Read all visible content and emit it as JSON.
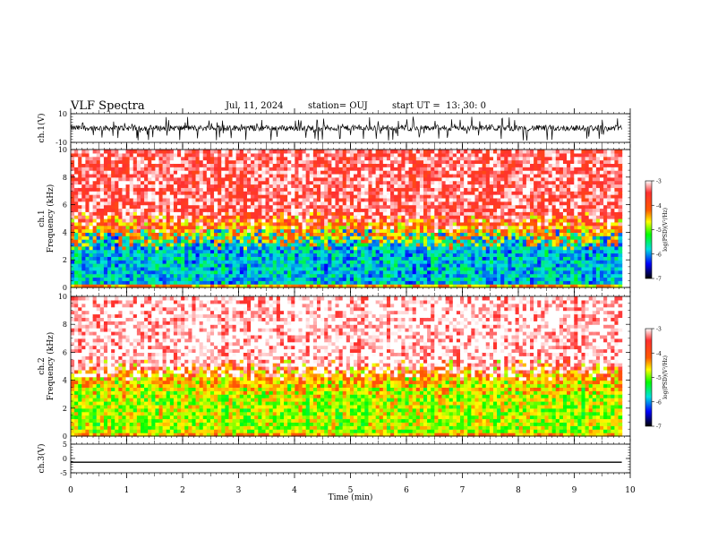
{
  "header": {
    "title": "VLF Spectra",
    "date": "Jul. 11, 2024",
    "station": "station= OUJ",
    "start": "start UT =  13: 30: 0"
  },
  "chart_data": [
    {
      "type": "line",
      "ylabel": "ch.1(V)",
      "ylim": [
        -10,
        10
      ],
      "yticks": [
        "10",
        "-10"
      ],
      "grid": false
    },
    {
      "type": "heatmap",
      "ylabel_line1": "ch.1",
      "ylabel_line2": "Frequency (kHz)",
      "ylim": [
        0,
        10
      ],
      "yticks": [
        "0",
        "2",
        "4",
        "6",
        "8",
        "10"
      ],
      "colorbar": {
        "label": "log(PSD)(V²/Hz)",
        "range": [
          -7,
          -3
        ],
        "ticks": [
          "-3",
          "-4",
          "-5",
          "-6",
          "-7"
        ]
      },
      "description_levels": {
        "low_band_kHz": [
          0,
          3.5
        ],
        "low_band_logpsd": -6,
        "high_band_logpsd": -3.5
      }
    },
    {
      "type": "heatmap",
      "ylabel_line1": "ch.2",
      "ylabel_line2": "Frequency (kHz)",
      "ylim": [
        0,
        10
      ],
      "yticks": [
        "0",
        "2",
        "4",
        "6",
        "8",
        "10"
      ],
      "colorbar": {
        "label": "log(PSD)(V²/Hz)",
        "range": [
          -7,
          -3
        ],
        "ticks": [
          "-3",
          "-4",
          "-5",
          "-6",
          "-7"
        ]
      },
      "description_levels": {
        "low_band_kHz": [
          0,
          3.5
        ],
        "low_band_logpsd": -5,
        "high_band_logpsd": -3.2
      }
    },
    {
      "type": "line",
      "ylabel": "ch.3(V)",
      "ylim": [
        -5,
        5
      ],
      "yticks": [
        "5",
        "0",
        "-5"
      ],
      "series": [
        {
          "x": [
            0,
            9.85
          ],
          "y": [
            -1.3,
            -1.3
          ]
        }
      ]
    }
  ],
  "xaxis": {
    "label": "Time (min)",
    "xlim": [
      0,
      10
    ],
    "ticks": [
      "0",
      "1",
      "2",
      "3",
      "4",
      "5",
      "6",
      "7",
      "8",
      "9",
      "10"
    ],
    "data_end": 9.85
  },
  "colors": {
    "trace": "#000000",
    "background": "#ffffff"
  }
}
